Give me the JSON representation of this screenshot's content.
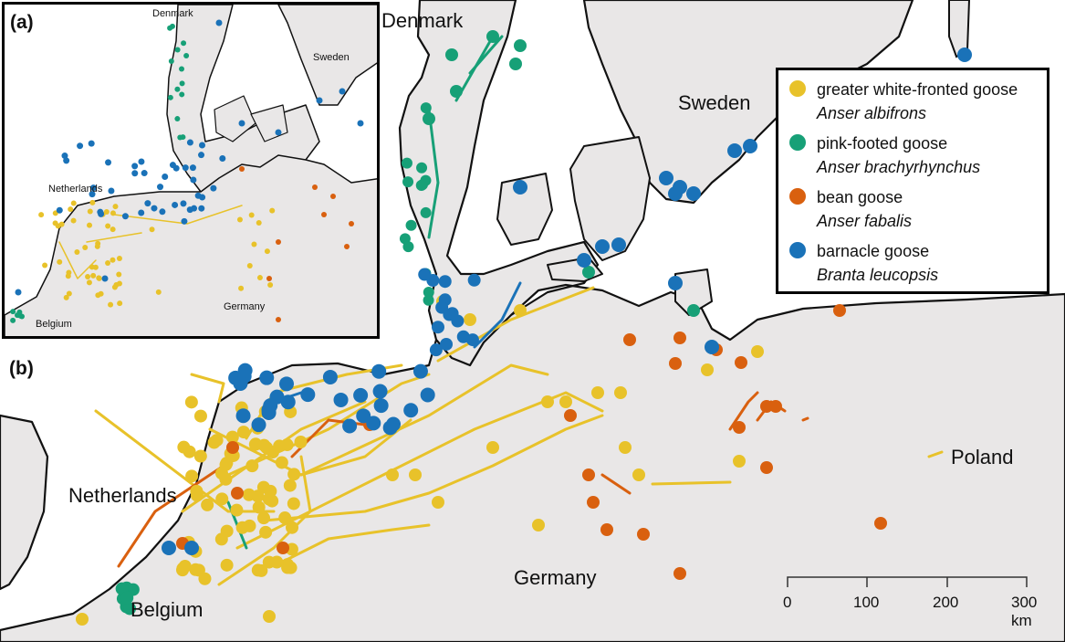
{
  "panels": {
    "a": "(a)",
    "b": "(b)"
  },
  "main_map": {
    "country_labels": {
      "denmark": "Denmark",
      "sweden": "Sweden",
      "netherlands": "Netherlands",
      "germany": "Germany",
      "belgium": "Belgium",
      "poland": "Poland"
    }
  },
  "inset_map": {
    "country_labels": {
      "denmark": "Denmark",
      "sweden": "Sweden",
      "netherlands": "Netherlands",
      "germany": "Germany",
      "belgium": "Belgium"
    }
  },
  "legend": {
    "items": [
      {
        "common": "greater white-fronted goose",
        "scientific": "Anser albifrons",
        "color": "#e8c22a"
      },
      {
        "common": "pink-footed goose",
        "scientific": "Anser brachyrhynchus",
        "color": "#17a077"
      },
      {
        "common": "bean goose",
        "scientific": "Anser fabalis",
        "color": "#d9600f"
      },
      {
        "common": "barnacle goose",
        "scientific": "Branta leucopsis",
        "color": "#1a72b8"
      }
    ]
  },
  "scale_bar": {
    "ticks": [
      "0",
      "100",
      "200",
      "300 km"
    ]
  },
  "colors": {
    "land": "#e9e7e7",
    "sea": "#ffffff",
    "coastline": "#111111"
  }
}
